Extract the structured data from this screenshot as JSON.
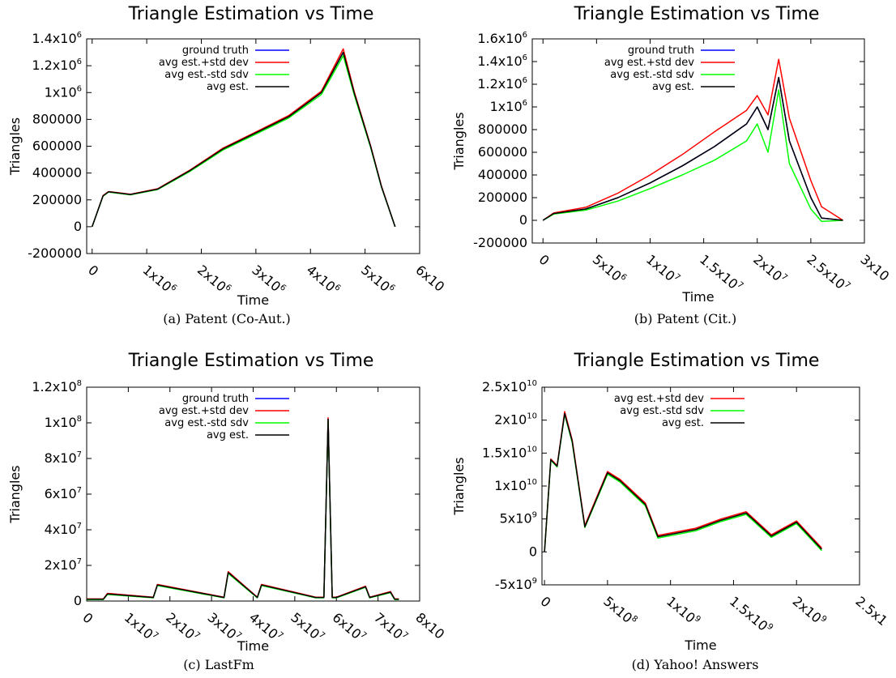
{
  "chart_data": [
    {
      "type": "line",
      "title": "Triangle Estimation vs Time",
      "xlabel": "Time",
      "ylabel": "Triangles",
      "caption": "(a) Patent (Co-Aut.)",
      "xlim": [
        -100000,
        6000000
      ],
      "ylim": [
        -200000,
        1400000
      ],
      "y_ticks": [
        {
          "v": -200000,
          "m": "-200000"
        },
        {
          "v": 0,
          "m": "0"
        },
        {
          "v": 200000,
          "m": "200000"
        },
        {
          "v": 400000,
          "m": "400000"
        },
        {
          "v": 600000,
          "m": "600000"
        },
        {
          "v": 800000,
          "m": "800000"
        },
        {
          "v": 1000000,
          "m": "1x10",
          "e": "6"
        },
        {
          "v": 1200000,
          "m": "1.2x10",
          "e": "6"
        },
        {
          "v": 1400000,
          "m": "1.4x10",
          "e": "6"
        }
      ],
      "x_ticks": [
        {
          "v": 0,
          "m": "0"
        },
        {
          "v": 1000000,
          "m": "1x10",
          "e": "6"
        },
        {
          "v": 2000000,
          "m": "2x10",
          "e": "6"
        },
        {
          "v": 3000000,
          "m": "3x10",
          "e": "6"
        },
        {
          "v": 4000000,
          "m": "4x10",
          "e": "6"
        },
        {
          "v": 5000000,
          "m": "5x10",
          "e": "6"
        },
        {
          "v": 6000000,
          "m": "6x10"
        }
      ],
      "series": [
        {
          "name": "ground truth",
          "color": "#0000ff",
          "x": [
            0,
            200000,
            300000,
            700000,
            1200000,
            1800000,
            2400000,
            3000000,
            3600000,
            4200000,
            4600000,
            4800000,
            5100000,
            5300000,
            5550000
          ],
          "y": [
            0,
            230000,
            260000,
            240000,
            280000,
            420000,
            580000,
            700000,
            820000,
            1000000,
            1300000,
            1000000,
            600000,
            300000,
            0
          ]
        },
        {
          "name": "avg est.+std dev",
          "color": "#ff0000",
          "x": [
            0,
            200000,
            300000,
            700000,
            1200000,
            1800000,
            2400000,
            3000000,
            3600000,
            4200000,
            4600000,
            4800000,
            5100000,
            5300000,
            5550000
          ],
          "y": [
            0,
            232000,
            262000,
            242000,
            283000,
            424000,
            586000,
            706000,
            828000,
            1010000,
            1325000,
            1010000,
            605000,
            304000,
            0
          ]
        },
        {
          "name": "avg est.-std sdv",
          "color": "#00ff00",
          "x": [
            0,
            200000,
            300000,
            700000,
            1200000,
            1800000,
            2400000,
            3000000,
            3600000,
            4200000,
            4600000,
            4800000,
            5100000,
            5300000,
            5550000
          ],
          "y": [
            0,
            228000,
            258000,
            238000,
            277000,
            414000,
            572000,
            690000,
            810000,
            985000,
            1275000,
            985000,
            592000,
            296000,
            0
          ]
        },
        {
          "name": "avg est.",
          "color": "#000000",
          "x": [
            0,
            200000,
            300000,
            700000,
            1200000,
            1800000,
            2400000,
            3000000,
            3600000,
            4200000,
            4600000,
            4800000,
            5100000,
            5300000,
            5550000
          ],
          "y": [
            0,
            230000,
            260000,
            240000,
            280000,
            420000,
            580000,
            700000,
            820000,
            1000000,
            1300000,
            1000000,
            600000,
            300000,
            0
          ]
        }
      ]
    },
    {
      "type": "line",
      "title": "Triangle Estimation vs Time",
      "xlabel": "Time",
      "ylabel": "Triangles",
      "caption": "(b) Patent (Cit.)",
      "xlim": [
        -1000000,
        30000000
      ],
      "ylim": [
        -200000,
        1600000
      ],
      "y_ticks": [
        {
          "v": -200000,
          "m": "-200000"
        },
        {
          "v": 0,
          "m": "0"
        },
        {
          "v": 200000,
          "m": "200000"
        },
        {
          "v": 400000,
          "m": "400000"
        },
        {
          "v": 600000,
          "m": "600000"
        },
        {
          "v": 800000,
          "m": "800000"
        },
        {
          "v": 1000000,
          "m": "1x10",
          "e": "6"
        },
        {
          "v": 1200000,
          "m": "1.2x10",
          "e": "6"
        },
        {
          "v": 1400000,
          "m": "1.4x10",
          "e": "6"
        },
        {
          "v": 1600000,
          "m": "1.6x10",
          "e": "6"
        }
      ],
      "x_ticks": [
        {
          "v": 0,
          "m": "0"
        },
        {
          "v": 5000000,
          "m": "5x10",
          "e": "6"
        },
        {
          "v": 10000000,
          "m": "1x10",
          "e": "7"
        },
        {
          "v": 15000000,
          "m": "1.5x10",
          "e": "7"
        },
        {
          "v": 20000000,
          "m": "2x10",
          "e": "7"
        },
        {
          "v": 25000000,
          "m": "2.5x10",
          "e": "7"
        },
        {
          "v": 30000000,
          "m": "3x10"
        }
      ],
      "series": [
        {
          "name": "ground truth",
          "color": "#0000ff",
          "x": [
            0,
            1000000,
            4000000,
            7000000,
            10000000,
            13000000,
            16000000,
            19000000,
            20000000,
            21000000,
            22000000,
            23000000,
            25000000,
            26000000,
            28000000
          ],
          "y": [
            0,
            60000,
            100000,
            200000,
            330000,
            480000,
            650000,
            850000,
            1000000,
            800000,
            1260000,
            700000,
            200000,
            20000,
            0
          ]
        },
        {
          "name": "avg est.+std dev",
          "color": "#ff0000",
          "x": [
            0,
            1000000,
            4000000,
            7000000,
            10000000,
            13000000,
            16000000,
            19000000,
            20000000,
            21000000,
            22000000,
            23000000,
            25000000,
            26000000,
            28000000
          ],
          "y": [
            0,
            65000,
            115000,
            240000,
            400000,
            580000,
            780000,
            970000,
            1100000,
            930000,
            1420000,
            900000,
            350000,
            120000,
            0
          ]
        },
        {
          "name": "avg est.-std sdv",
          "color": "#00ff00",
          "x": [
            0,
            1000000,
            4000000,
            7000000,
            10000000,
            13000000,
            16000000,
            19000000,
            20000000,
            21000000,
            22000000,
            23000000,
            25000000,
            26000000,
            28000000
          ],
          "y": [
            0,
            55000,
            90000,
            170000,
            280000,
            400000,
            530000,
            700000,
            850000,
            600000,
            1150000,
            500000,
            100000,
            -10000,
            0
          ]
        },
        {
          "name": "avg est.",
          "color": "#000000",
          "x": [
            0,
            1000000,
            4000000,
            7000000,
            10000000,
            13000000,
            16000000,
            19000000,
            20000000,
            21000000,
            22000000,
            23000000,
            25000000,
            26000000,
            28000000
          ],
          "y": [
            0,
            60000,
            100000,
            200000,
            330000,
            480000,
            650000,
            850000,
            1000000,
            800000,
            1260000,
            700000,
            200000,
            20000,
            0
          ]
        }
      ]
    },
    {
      "type": "line",
      "title": "Triangle Estimation vs Time",
      "xlabel": "Time",
      "ylabel": "Triangles",
      "caption": "(c) LastFm",
      "xlim": [
        0,
        80000000
      ],
      "ylim": [
        0,
        120000000
      ],
      "y_ticks": [
        {
          "v": 0,
          "m": "0"
        },
        {
          "v": 20000000,
          "m": "2x10",
          "e": "7"
        },
        {
          "v": 40000000,
          "m": "4x10",
          "e": "7"
        },
        {
          "v": 60000000,
          "m": "6x10",
          "e": "7"
        },
        {
          "v": 80000000,
          "m": "8x10",
          "e": "7"
        },
        {
          "v": 100000000,
          "m": "1x10",
          "e": "8"
        },
        {
          "v": 120000000,
          "m": "1.2x10",
          "e": "8"
        }
      ],
      "x_ticks": [
        {
          "v": 0,
          "m": "0"
        },
        {
          "v": 10000000,
          "m": "1x10",
          "e": "7"
        },
        {
          "v": 20000000,
          "m": "2x10",
          "e": "7"
        },
        {
          "v": 30000000,
          "m": "3x10",
          "e": "7"
        },
        {
          "v": 40000000,
          "m": "4x10",
          "e": "7"
        },
        {
          "v": 50000000,
          "m": "5x10",
          "e": "7"
        },
        {
          "v": 60000000,
          "m": "6x10",
          "e": "7"
        },
        {
          "v": 70000000,
          "m": "7x10",
          "e": "7"
        },
        {
          "v": 80000000,
          "m": "8x10"
        }
      ],
      "series": [
        {
          "name": "ground truth",
          "color": "#0000ff",
          "x": [
            0,
            4000000,
            5000000,
            16000000,
            17000000,
            33000000,
            34000000,
            41000000,
            42000000,
            55000000,
            57000000,
            58000000,
            59000000,
            60000000,
            67000000,
            68000000,
            73000000,
            74000000,
            75000000
          ],
          "y": [
            1000000,
            1000000,
            4000000,
            2000000,
            9000000,
            2000000,
            16000000,
            2000000,
            9000000,
            2000000,
            2000000,
            102000000,
            2000000,
            2000000,
            8000000,
            2000000,
            5000000,
            1000000,
            1000000
          ]
        },
        {
          "name": "avg est.+std dev",
          "color": "#ff0000",
          "x": [
            0,
            4000000,
            5000000,
            16000000,
            17000000,
            33000000,
            34000000,
            41000000,
            42000000,
            55000000,
            57000000,
            58000000,
            59000000,
            60000000,
            67000000,
            68000000,
            73000000,
            74000000,
            75000000
          ],
          "y": [
            1200000,
            1200000,
            4300000,
            2200000,
            9300000,
            2200000,
            16500000,
            2200000,
            9300000,
            2200000,
            2200000,
            102800000,
            2200000,
            2200000,
            8300000,
            2200000,
            5300000,
            1200000,
            1200000
          ]
        },
        {
          "name": "avg est.-std sdv",
          "color": "#00ff00",
          "x": [
            0,
            4000000,
            5000000,
            16000000,
            17000000,
            33000000,
            34000000,
            41000000,
            42000000,
            55000000,
            57000000,
            58000000,
            59000000,
            60000000,
            67000000,
            68000000,
            73000000,
            74000000,
            75000000
          ],
          "y": [
            800000,
            800000,
            3700000,
            1800000,
            8700000,
            1800000,
            15500000,
            1800000,
            8700000,
            1800000,
            1800000,
            101200000,
            1800000,
            1800000,
            7700000,
            1800000,
            4700000,
            800000,
            800000
          ]
        },
        {
          "name": "avg est.",
          "color": "#000000",
          "x": [
            0,
            4000000,
            5000000,
            16000000,
            17000000,
            33000000,
            34000000,
            41000000,
            42000000,
            55000000,
            57000000,
            58000000,
            59000000,
            60000000,
            67000000,
            68000000,
            73000000,
            74000000,
            75000000
          ],
          "y": [
            1000000,
            1000000,
            4000000,
            2000000,
            9000000,
            2000000,
            16000000,
            2000000,
            9000000,
            2000000,
            2000000,
            102000000,
            2000000,
            2000000,
            8000000,
            2000000,
            5000000,
            1000000,
            1000000
          ]
        }
      ]
    },
    {
      "type": "line",
      "title": "Triangle Estimation vs Time",
      "xlabel": "Time",
      "ylabel": "Triangles",
      "caption": "(d) Yahoo! Answers",
      "xlim": [
        -20000000,
        2500000000
      ],
      "ylim": [
        -5000000000,
        25000000000
      ],
      "y_ticks": [
        {
          "v": -5000000000,
          "m": "-5x10",
          "e": "9"
        },
        {
          "v": 0,
          "m": "0"
        },
        {
          "v": 5000000000,
          "m": "5x10",
          "e": "9"
        },
        {
          "v": 10000000000,
          "m": "1x10",
          "e": "10"
        },
        {
          "v": 15000000000,
          "m": "1.5x10",
          "e": "10"
        },
        {
          "v": 20000000000,
          "m": "2x10",
          "e": "10"
        },
        {
          "v": 25000000000,
          "m": "2.5x10",
          "e": "10"
        }
      ],
      "x_ticks": [
        {
          "v": 0,
          "m": "0"
        },
        {
          "v": 500000000,
          "m": "5x10",
          "e": "8"
        },
        {
          "v": 1000000000,
          "m": "1x10",
          "e": "9"
        },
        {
          "v": 1500000000,
          "m": "1.5x10",
          "e": "9"
        },
        {
          "v": 2000000000,
          "m": "2x10",
          "e": "9"
        },
        {
          "v": 2500000000,
          "m": "2.5x1"
        }
      ],
      "series": [
        {
          "name": "avg est.+std dev",
          "color": "#ff0000",
          "x": [
            0,
            50000000,
            100000000,
            160000000,
            220000000,
            320000000,
            500000000,
            600000000,
            800000000,
            900000000,
            1200000000,
            1400000000,
            1600000000,
            1800000000,
            2000000000,
            2200000000
          ],
          "y": [
            0,
            14100000000,
            13100000000,
            21300000000,
            17000000000,
            4000000000,
            12200000000,
            11000000000,
            7400000000,
            2500000000,
            3600000000,
            5000000000,
            6100000000,
            2600000000,
            4700000000,
            600000000
          ]
        },
        {
          "name": "avg est.-std sdv",
          "color": "#00ff00",
          "x": [
            0,
            50000000,
            100000000,
            160000000,
            220000000,
            320000000,
            500000000,
            600000000,
            800000000,
            900000000,
            1200000000,
            1400000000,
            1600000000,
            1800000000,
            2000000000,
            2200000000
          ],
          "y": [
            0,
            13900000000,
            12900000000,
            20900000000,
            16600000000,
            3700000000,
            11800000000,
            10600000000,
            7000000000,
            2100000000,
            3200000000,
            4600000000,
            5700000000,
            2200000000,
            4300000000,
            200000000
          ]
        },
        {
          "name": "avg est.",
          "color": "#000000",
          "x": [
            0,
            50000000,
            100000000,
            160000000,
            220000000,
            320000000,
            500000000,
            600000000,
            800000000,
            900000000,
            1200000000,
            1400000000,
            1600000000,
            1800000000,
            2000000000,
            2200000000
          ],
          "y": [
            0,
            14000000000,
            13000000000,
            21000000000,
            16800000000,
            3800000000,
            12000000000,
            10800000000,
            7200000000,
            2300000000,
            3400000000,
            4800000000,
            5900000000,
            2400000000,
            4500000000,
            400000000
          ]
        }
      ]
    }
  ]
}
